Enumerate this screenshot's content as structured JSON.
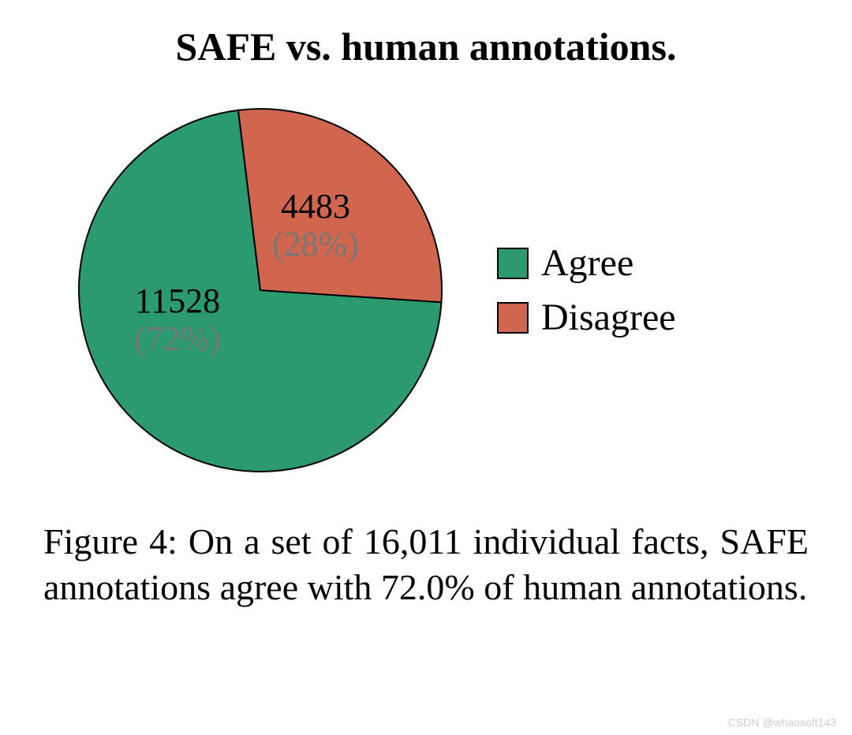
{
  "chart": {
    "type": "pie",
    "title": "SAFE vs. human annotations.",
    "title_fontsize": 50,
    "title_fontweight": "bold",
    "background_color": "#ffffff",
    "stroke_color": "#000000",
    "stroke_width": 2,
    "radius": 230,
    "start_angle_deg": -90,
    "slices": [
      {
        "label": "Agree",
        "value": 11528,
        "percent": 72,
        "percent_text": "(72%)",
        "value_text": "11528",
        "color": "#2b9a6e"
      },
      {
        "label": "Disagree",
        "value": 4483,
        "percent": 28,
        "percent_text": "(28%)",
        "value_text": "4483",
        "color": "#d1664e"
      }
    ],
    "value_label_color": "#000000",
    "percent_label_color": "#777777",
    "slice_label_fontsize": 44,
    "legend": {
      "items": [
        {
          "label": "Agree",
          "color": "#2b9a6e"
        },
        {
          "label": "Disagree",
          "color": "#d1664e"
        }
      ],
      "swatch_size": 40,
      "swatch_border_color": "#000000",
      "label_fontsize": 48
    }
  },
  "caption": {
    "text": "Figure 4:  On a set of 16,011 indi­vidual facts, SAFE annotations agree with 72.0% of human annotations.",
    "fontsize": 46
  },
  "watermark": "CSDN @whaosoft143"
}
